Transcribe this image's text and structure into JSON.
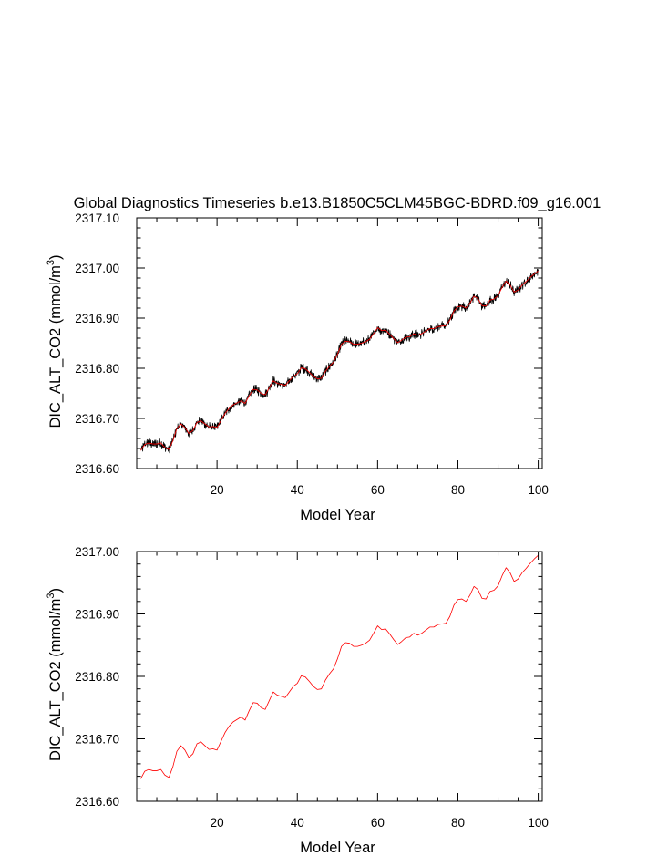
{
  "figure": {
    "title": "Global Diagnostics Timeseries b.e13.B1850C5CLM45BGC-BDRD.f09_g16.001"
  },
  "chart_data": [
    {
      "type": "line",
      "xlabel": "Model Year",
      "ylabel_main": "DIC_ALT_CO2 (mmol/m",
      "ylabel_sup": "3",
      "ylabel_close": ")",
      "xlim": [
        0,
        101
      ],
      "ylim": [
        2316.6,
        2317.1
      ],
      "x_ticks": [
        20,
        40,
        60,
        80,
        100
      ],
      "x_tick_labels": [
        "20",
        "40",
        "60",
        "80",
        "100"
      ],
      "y_ticks": [
        2316.6,
        2316.7,
        2316.8,
        2316.9,
        2317.0,
        2317.1
      ],
      "y_tick_labels": [
        "2316.60",
        "2316.70",
        "2316.80",
        "2316.90",
        "2317.00",
        "2317.10"
      ],
      "series": [
        {
          "color": "#000000",
          "line_width": 0.8,
          "values_source": "monthly",
          "monthly_amplitude": 0.01
        },
        {
          "color": "#ff0000",
          "line_width": 0.8,
          "values_source": "annual"
        }
      ]
    },
    {
      "type": "line",
      "xlabel": "Model Year",
      "ylabel_main": "DIC_ALT_CO2 (mmol/m",
      "ylabel_sup": "3",
      "ylabel_close": ")",
      "xlim": [
        0,
        101
      ],
      "ylim": [
        2316.6,
        2317.0
      ],
      "x_ticks": [
        20,
        40,
        60,
        80,
        100
      ],
      "x_tick_labels": [
        "20",
        "40",
        "60",
        "80",
        "100"
      ],
      "y_ticks": [
        2316.6,
        2316.7,
        2316.8,
        2316.9,
        2317.0
      ],
      "y_tick_labels": [
        "2316.60",
        "2316.70",
        "2316.80",
        "2316.90",
        "2317.00"
      ],
      "series": [
        {
          "color": "#ff0000",
          "line_width": 0.8,
          "values_source": "annual"
        }
      ]
    }
  ],
  "annual": {
    "x": [
      1,
      2,
      3,
      4,
      5,
      6,
      7,
      8,
      9,
      10,
      11,
      12,
      13,
      14,
      15,
      16,
      17,
      18,
      19,
      20,
      21,
      22,
      23,
      24,
      25,
      26,
      27,
      28,
      29,
      30,
      31,
      32,
      33,
      34,
      35,
      36,
      37,
      38,
      39,
      40,
      41,
      42,
      43,
      44,
      45,
      46,
      47,
      48,
      49,
      50,
      51,
      52,
      53,
      54,
      55,
      56,
      57,
      58,
      59,
      60,
      61,
      62,
      63,
      64,
      65,
      66,
      67,
      68,
      69,
      70,
      71,
      72,
      73,
      74,
      75,
      76,
      77,
      78,
      79,
      80,
      81,
      82,
      83,
      84,
      85,
      86,
      87,
      88,
      89,
      90,
      91,
      92,
      93,
      94,
      95,
      96,
      97,
      98,
      99,
      100
    ],
    "y": [
      2316.636,
      2316.648,
      2316.651,
      2316.649,
      2316.649,
      2316.651,
      2316.642,
      2316.638,
      2316.655,
      2316.68,
      2316.689,
      2316.682,
      2316.67,
      2316.676,
      2316.692,
      2316.695,
      2316.689,
      2316.683,
      2316.684,
      2316.682,
      2316.696,
      2316.71,
      2316.72,
      2316.727,
      2316.731,
      2316.735,
      2316.73,
      2316.745,
      2316.758,
      2316.757,
      2316.75,
      2316.747,
      2316.761,
      2316.775,
      2316.77,
      2316.768,
      2316.766,
      2316.775,
      2316.784,
      2316.789,
      2316.801,
      2316.799,
      2316.792,
      2316.784,
      2316.779,
      2316.78,
      2316.794,
      2316.804,
      2316.812,
      2316.828,
      2316.848,
      2316.854,
      2316.853,
      2316.848,
      2316.848,
      2316.85,
      2316.853,
      2316.858,
      2316.869,
      2316.881,
      2316.875,
      2316.876,
      2316.868,
      2316.859,
      2316.851,
      2316.856,
      2316.862,
      2316.863,
      2316.869,
      2316.866,
      2316.869,
      2316.874,
      2316.879,
      2316.879,
      2316.883,
      2316.884,
      2316.885,
      2316.896,
      2316.914,
      2316.923,
      2316.924,
      2316.92,
      2316.93,
      2316.944,
      2316.939,
      2316.925,
      2316.924,
      2316.936,
      2316.938,
      2316.945,
      2316.961,
      2316.974,
      2316.966,
      2316.952,
      2316.956,
      2316.966,
      2316.973,
      2316.981,
      2316.988,
      2316.994
    ]
  }
}
